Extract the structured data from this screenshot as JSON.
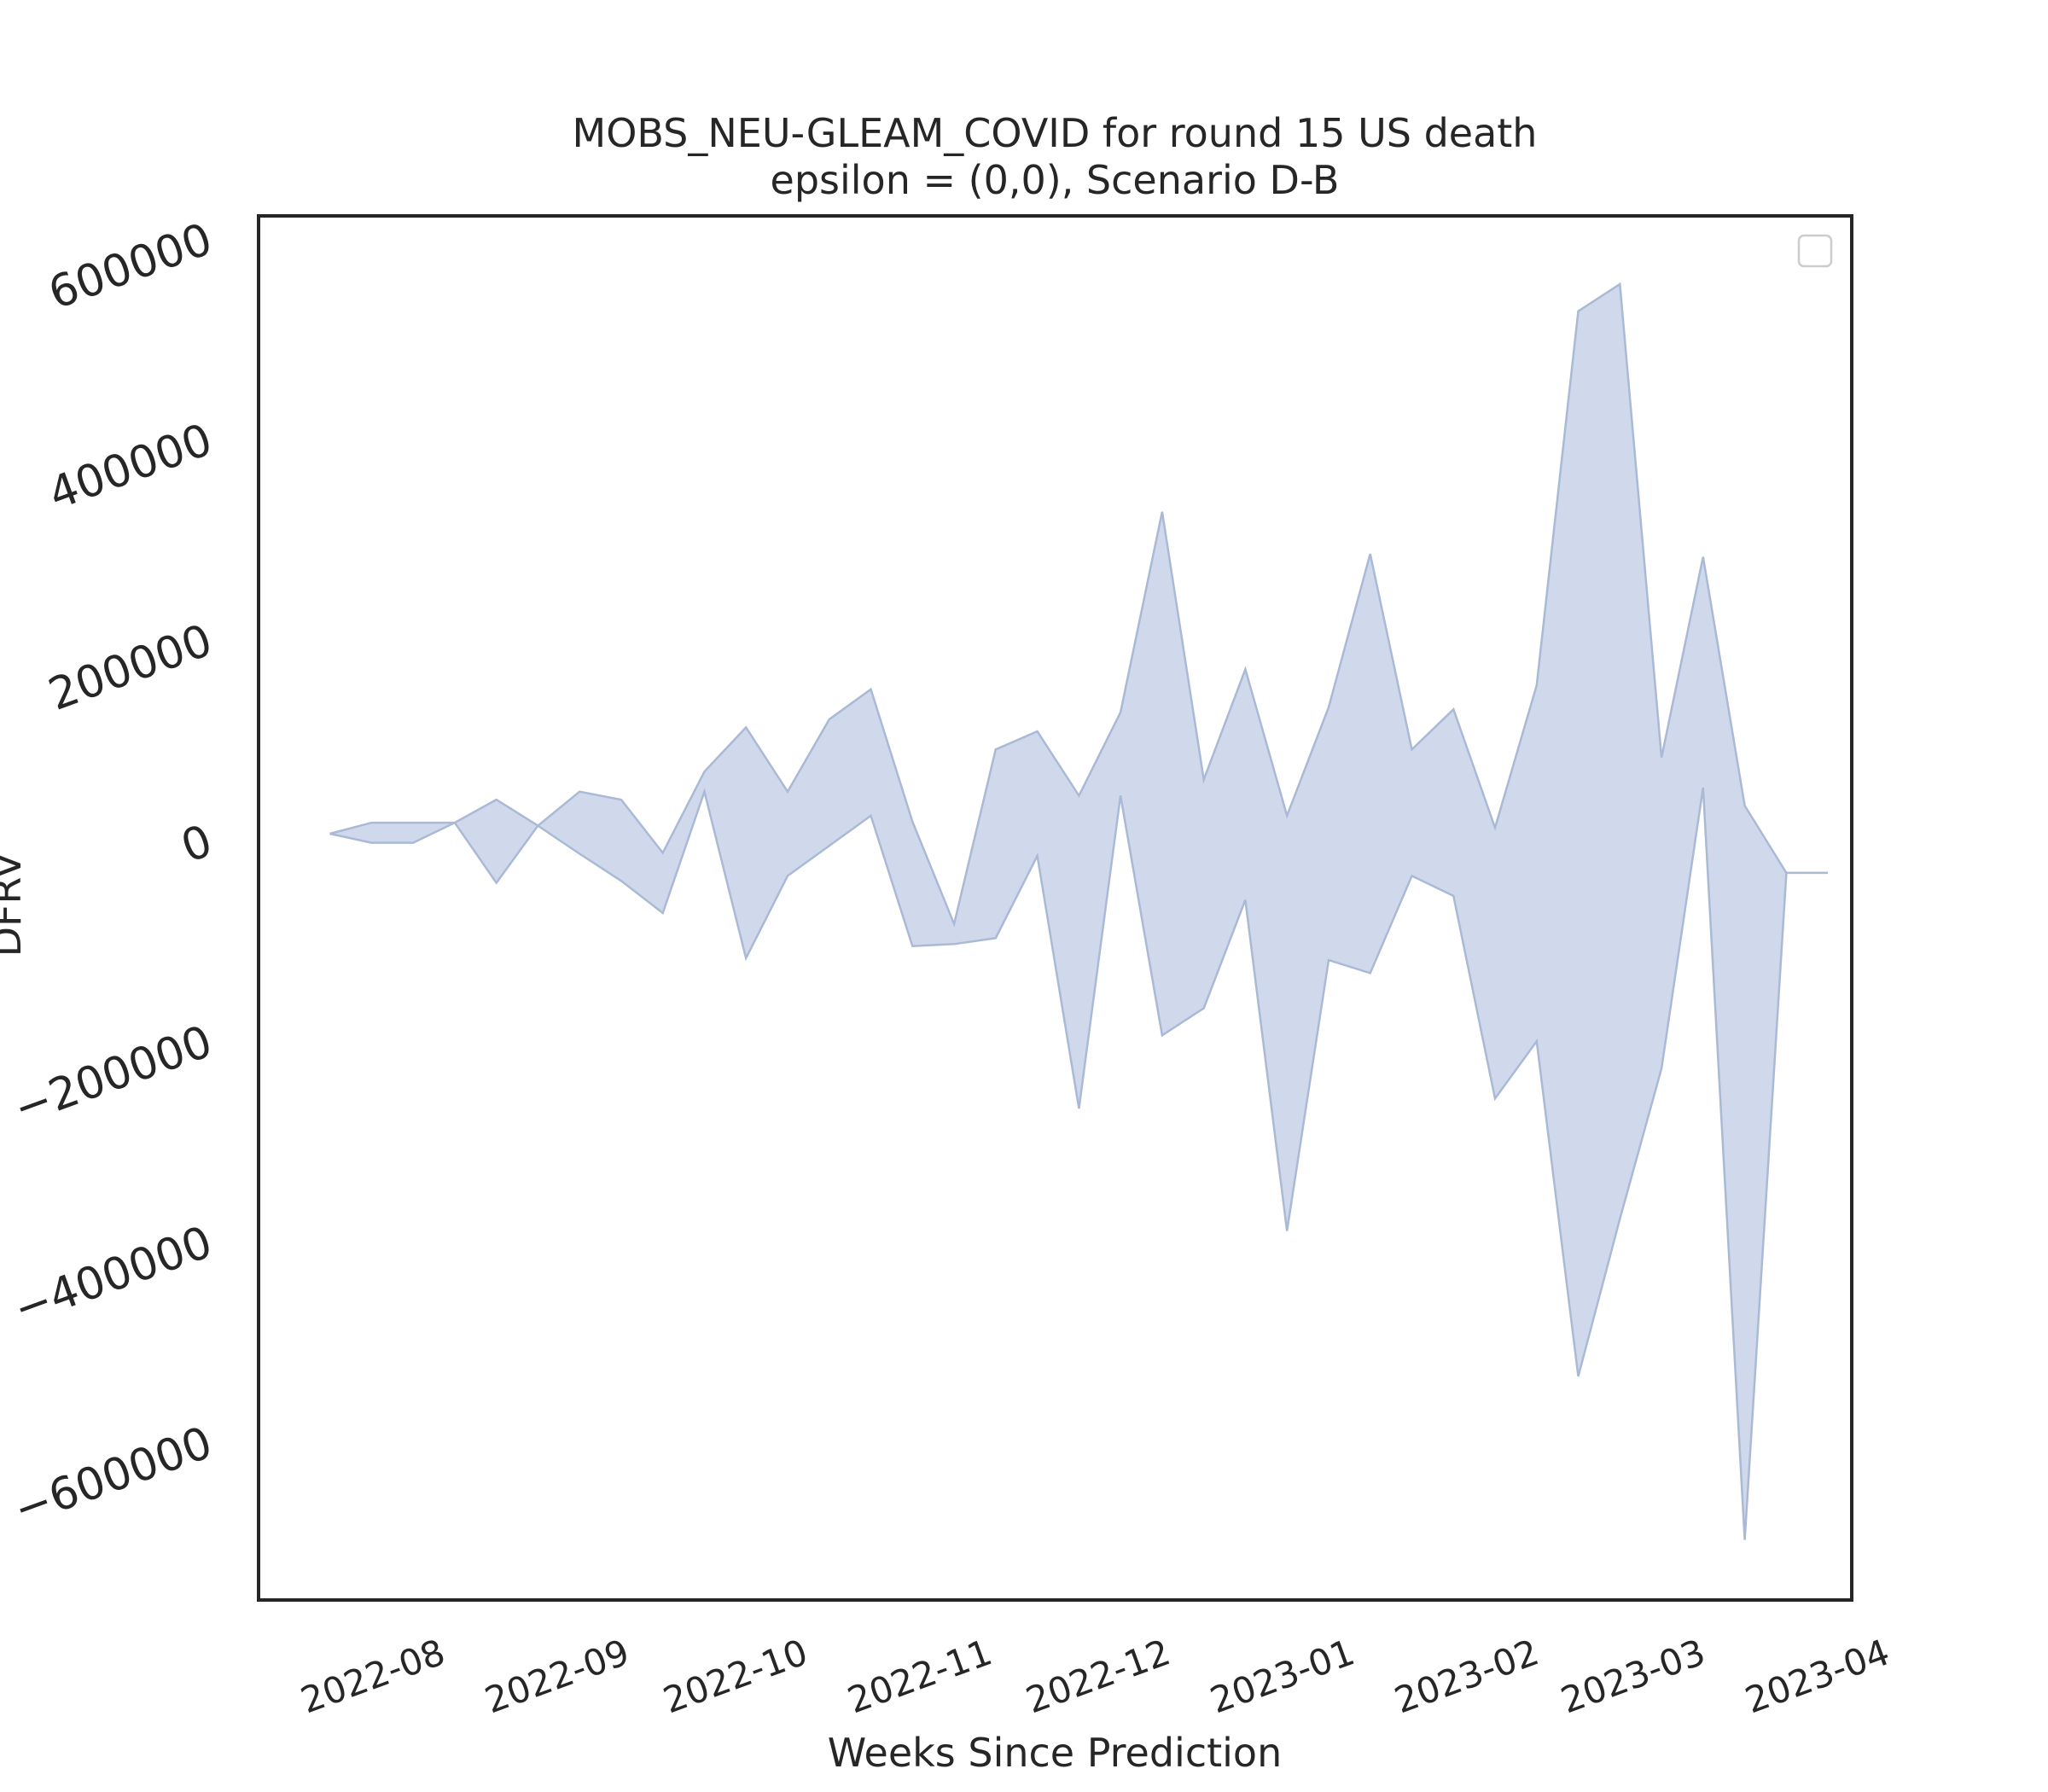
{
  "chart_data": {
    "type": "area",
    "title": "MOBS_NEU-GLEAM_COVID for round 15 US death",
    "subtitle": "epsilon = (0,0), Scenario D-B",
    "xlabel": "Weeks Since Prediction",
    "ylabel": "DFRV",
    "x_ticks": [
      "2022-08",
      "2022-09",
      "2022-10",
      "2022-11",
      "2022-12",
      "2023-01",
      "2023-02",
      "2023-03",
      "2023-04"
    ],
    "y_ticks": [
      600000,
      400000,
      200000,
      0,
      -200000,
      -400000,
      -600000
    ],
    "ylim": [
      -760000,
      620000
    ],
    "xlim": [
      "2022-07-10",
      "2023-04-04"
    ],
    "grid": false,
    "legend": {
      "placement": "top-right",
      "entries": []
    },
    "fill_color": "#b0c0de",
    "stroke_color": "#a9b9d6",
    "x": [
      "2022-07-22",
      "2022-07-29",
      "2022-08-05",
      "2022-08-12",
      "2022-08-19",
      "2022-08-26",
      "2022-09-02",
      "2022-09-09",
      "2022-09-16",
      "2022-09-23",
      "2022-09-30",
      "2022-10-07",
      "2022-10-14",
      "2022-10-21",
      "2022-10-28",
      "2022-11-04",
      "2022-11-11",
      "2022-11-18",
      "2022-11-25",
      "2022-12-02",
      "2022-12-09",
      "2022-12-16",
      "2022-12-23",
      "2022-12-30",
      "2023-01-06",
      "2023-01-13",
      "2023-01-20",
      "2023-01-27",
      "2023-02-03",
      "2023-02-10",
      "2023-02-17",
      "2023-02-24",
      "2023-03-03",
      "2023-03-10",
      "2023-03-17",
      "2023-03-24",
      "2023-03-31"
    ],
    "series": [
      {
        "values_upper": [
          4000,
          15000,
          15000,
          15000,
          38000,
          12000,
          46000,
          38000,
          -15000,
          66000,
          110000,
          46000,
          118000,
          148000,
          16000,
          -86000,
          88000,
          106000,
          42000,
          125000,
          325000,
          58000,
          168000,
          22000,
          130000,
          283000,
          88000,
          128000,
          10000,
          152000,
          525000,
          552000,
          80000,
          280000,
          32000,
          -35000,
          -35000
        ],
        "values_lower": [
          4000,
          -5000,
          -5000,
          15000,
          -45000,
          12000,
          -16000,
          -43000,
          -75000,
          46000,
          -120000,
          -38000,
          -8000,
          22000,
          -108000,
          -106000,
          -100000,
          -18000,
          -270000,
          42000,
          -197000,
          -170000,
          -62000,
          -392000,
          -122000,
          -135000,
          -38000,
          -58000,
          -260000,
          -203000,
          -537000,
          -380000,
          -230000,
          50000,
          -700000,
          -35000,
          -35000
        ]
      }
    ]
  }
}
